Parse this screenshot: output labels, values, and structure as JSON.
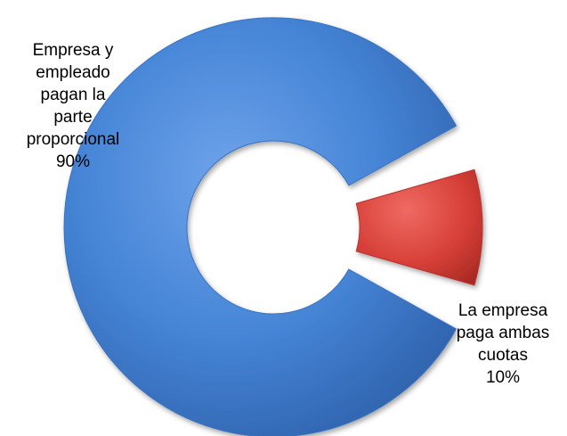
{
  "chart_data": {
    "type": "pie",
    "style": "exploded doughnut, 3D-shaded segments",
    "slices": [
      {
        "label_lines": [
          "Empresa y",
          "empleado",
          "pagan la",
          "parte",
          "proporcional"
        ],
        "value_label": "90%",
        "value": 90,
        "color": "#3f7fd3"
      },
      {
        "label_lines": [
          "La empresa",
          "paga ambas",
          "cuotas"
        ],
        "value_label": "10%",
        "value": 10,
        "color": "#d33f3a"
      }
    ],
    "legend": "none",
    "data_labels": "outside"
  }
}
